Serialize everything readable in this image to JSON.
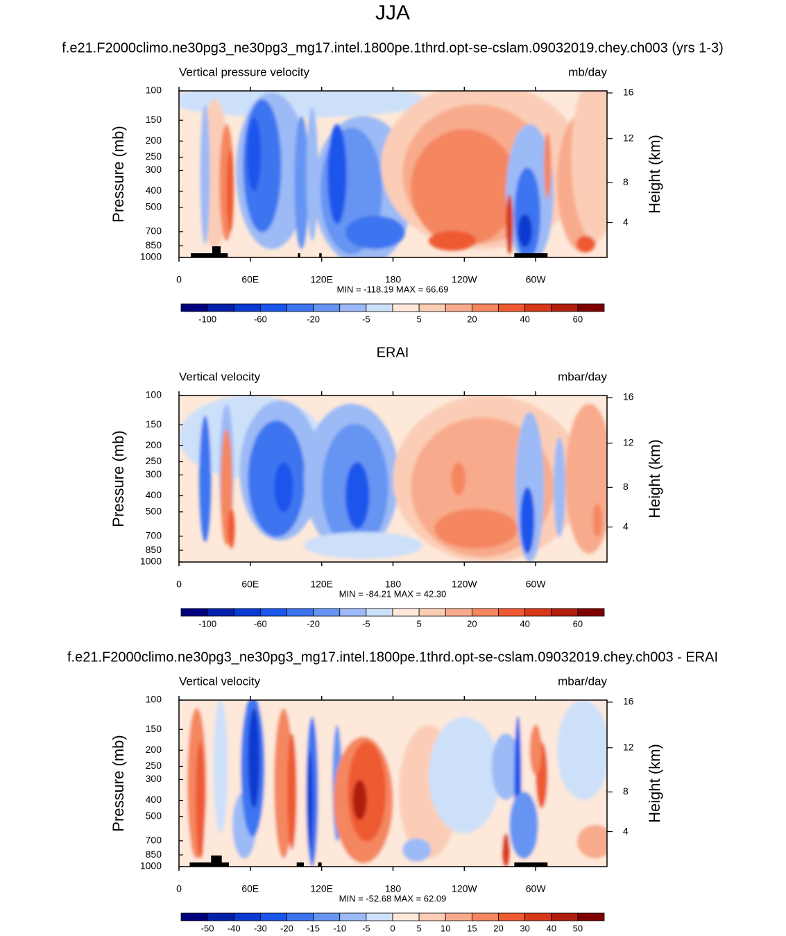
{
  "title": "JJA",
  "chart_data": [
    {
      "type": "contour",
      "title": "f.e21.F2000climo.ne30pg3_ne30pg3_mg17.intel.1800pe.1thrd.opt-se-cslam.09032019.chey.ch003 (yrs 1-3)",
      "left_label": "Vertical pressure velocity",
      "right_label": "mb/day",
      "ylabel": "Pressure (mb)",
      "y2label": "Height (km)",
      "xlim": [
        0,
        360
      ],
      "xticks": [
        0,
        {
          "value": 60,
          "label": "60E"
        },
        {
          "value": 120,
          "label": "120E"
        },
        180,
        {
          "value": 240,
          "label": "120W"
        },
        {
          "value": 300,
          "label": "60W"
        }
      ],
      "ylim": [
        1000,
        100
      ],
      "yscale": "log",
      "yticks": [
        100,
        150,
        200,
        250,
        300,
        400,
        500,
        700,
        850,
        1000
      ],
      "y2ticks": [
        4,
        8,
        12,
        16
      ],
      "y2scale": "standard-atmosphere",
      "stats": "MIN = -118.19  MAX =  66.69",
      "colorbar": {
        "colors": [
          "#00007f",
          "#0520a8",
          "#0a3ad0",
          "#1a55ec",
          "#3c74f0",
          "#6694f2",
          "#9cbaf5",
          "#cde0f9",
          "#fde8da",
          "#fbcdb6",
          "#f8ab8c",
          "#f48660",
          "#ee5a32",
          "#d8381a",
          "#b01e0e",
          "#7f0000"
        ],
        "labels": [
          -100,
          -60,
          -20,
          -5,
          5,
          20,
          40,
          60
        ]
      }
    },
    {
      "type": "contour",
      "title": "ERAI",
      "left_label": "Vertical velocity",
      "right_label": "mbar/day",
      "ylabel": "Pressure (mb)",
      "y2label": "Height (km)",
      "xlim": [
        0,
        360
      ],
      "xticks": [
        0,
        {
          "value": 60,
          "label": "60E"
        },
        {
          "value": 120,
          "label": "120E"
        },
        180,
        {
          "value": 240,
          "label": "120W"
        },
        {
          "value": 300,
          "label": "60W"
        }
      ],
      "ylim": [
        1000,
        100
      ],
      "yscale": "log",
      "yticks": [
        100,
        150,
        200,
        250,
        300,
        400,
        500,
        700,
        850,
        1000
      ],
      "y2ticks": [
        4,
        8,
        12,
        16
      ],
      "y2scale": "standard-atmosphere",
      "stats": "MIN = -84.21  MAX = 42.30",
      "colorbar": {
        "colors": [
          "#00007f",
          "#0520a8",
          "#0a3ad0",
          "#1a55ec",
          "#3c74f0",
          "#6694f2",
          "#9cbaf5",
          "#cde0f9",
          "#fde8da",
          "#fbcdb6",
          "#f8ab8c",
          "#f48660",
          "#ee5a32",
          "#d8381a",
          "#b01e0e",
          "#7f0000"
        ],
        "labels": [
          -100,
          -60,
          -20,
          -5,
          5,
          20,
          40,
          60
        ]
      }
    },
    {
      "type": "contour",
      "title": "f.e21.F2000climo.ne30pg3_ne30pg3_mg17.intel.1800pe.1thrd.opt-se-cslam.09032019.chey.ch003 - ERAI",
      "left_label": "Vertical velocity",
      "right_label": "mbar/day",
      "ylabel": "Pressure (mb)",
      "y2label": "Height (km)",
      "xlim": [
        0,
        360
      ],
      "xticks": [
        0,
        {
          "value": 60,
          "label": "60E"
        },
        {
          "value": 120,
          "label": "120E"
        },
        180,
        {
          "value": 240,
          "label": "120W"
        },
        {
          "value": 300,
          "label": "60W"
        }
      ],
      "ylim": [
        1000,
        100
      ],
      "yscale": "log",
      "yticks": [
        100,
        150,
        200,
        250,
        300,
        400,
        500,
        700,
        850,
        1000
      ],
      "y2ticks": [
        4,
        8,
        12,
        16
      ],
      "y2scale": "standard-atmosphere",
      "stats": "MIN = -52.68  MAX = 62.09",
      "colorbar": {
        "colors": [
          "#00007f",
          "#0520a8",
          "#0a3ad0",
          "#1a55ec",
          "#3c74f0",
          "#6694f2",
          "#9cbaf5",
          "#cde0f9",
          "#fde8da",
          "#fbcdb6",
          "#f8ab8c",
          "#f48660",
          "#ee5a32",
          "#d8381a",
          "#b01e0e",
          "#7f0000"
        ],
        "labels": [
          -50,
          -40,
          -30,
          -20,
          -15,
          -10,
          -5,
          0,
          5,
          10,
          15,
          20,
          30,
          40,
          50
        ]
      }
    }
  ]
}
